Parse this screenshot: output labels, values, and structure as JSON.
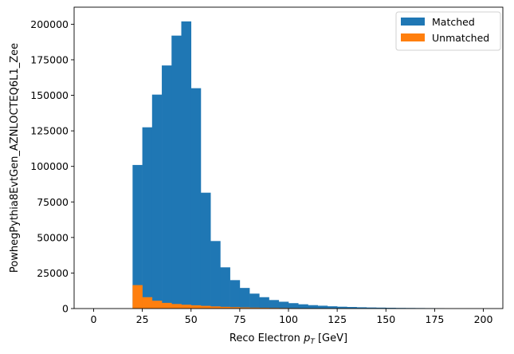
{
  "chart_data": {
    "type": "bar",
    "histogram": true,
    "stacked": true,
    "xlabel_main": "Reco Electron ",
    "xlabel_math": "p",
    "xlabel_sub": "T",
    "xlabel_unit": " [GeV]",
    "ylabel": "PowhegPythia8EvtGen_AZNLOCTEQ6L1_Zee",
    "xlim": [
      -10,
      210
    ],
    "ylim": [
      0,
      212000
    ],
    "xticks": [
      0,
      25,
      50,
      75,
      100,
      125,
      150,
      175,
      200
    ],
    "yticks": [
      0,
      25000,
      50000,
      75000,
      100000,
      125000,
      150000,
      175000,
      200000
    ],
    "bin_width": 5,
    "bin_edges_start": 20,
    "legend_position": "top-right",
    "series": [
      {
        "name": "Matched",
        "color": "#1f77b4",
        "values": [
          101000,
          127500,
          150500,
          171000,
          192000,
          202000,
          155000,
          81500,
          47500,
          29000,
          20000,
          14500,
          10500,
          8000,
          6000,
          4800,
          3800,
          3000,
          2400,
          2000,
          1600,
          1300,
          1100,
          900,
          750,
          650,
          550,
          450,
          400,
          350,
          300,
          250
        ]
      },
      {
        "name": "Unmatched",
        "color": "#ff7f0e",
        "values": [
          16500,
          8000,
          5500,
          4000,
          3200,
          2700,
          2300,
          1900,
          1500,
          1200,
          1000,
          800,
          650,
          550,
          450,
          380,
          320,
          270,
          230,
          200,
          170,
          150,
          130,
          110,
          100,
          90,
          80,
          70,
          60,
          50,
          40,
          30
        ]
      }
    ]
  }
}
